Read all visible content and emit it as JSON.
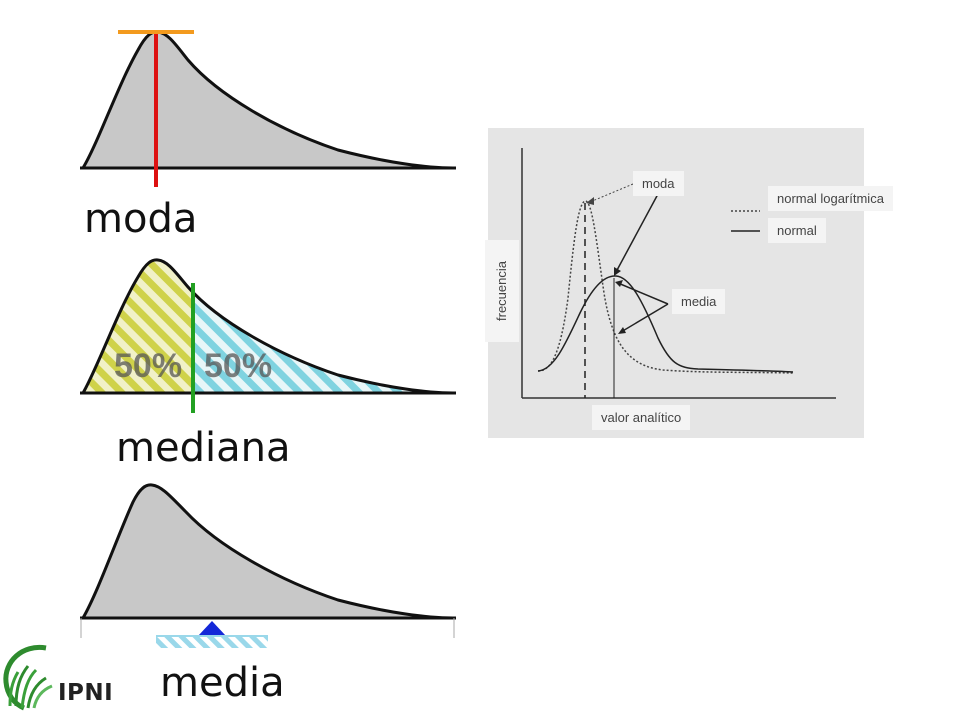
{
  "labels": {
    "moda": "moda",
    "mediana": "mediana",
    "media": "media"
  },
  "mediana_split": {
    "left": "50%",
    "right": "50%"
  },
  "graph": {
    "ylabel": "frecuencia",
    "xlabel": "valor analítico",
    "moda_tag": "moda",
    "media_tag": "media",
    "legend": [
      {
        "label": "normal logarítmica",
        "style": "dotted"
      },
      {
        "label": "normal",
        "style": "solid"
      }
    ]
  },
  "logo": {
    "text": "IPNI"
  },
  "colors": {
    "curve_fill": "#c8c8c8",
    "moda_line": "#dd1111",
    "moda_cap": "#f39a1e",
    "mediana_line": "#22a022",
    "hatch_left": "#cfd24a",
    "hatch_right": "#7fd3e0",
    "fulcrum": "#1428d8",
    "logo_green": "#2e8b2e"
  }
}
